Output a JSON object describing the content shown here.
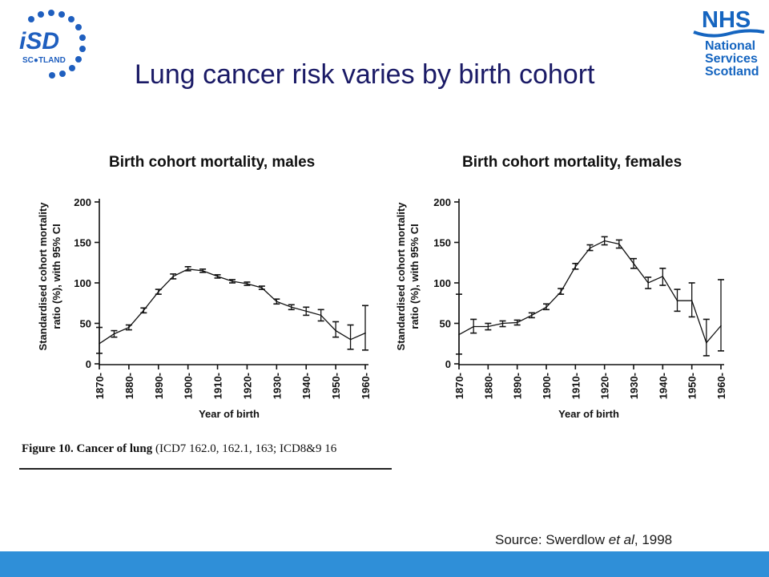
{
  "slide": {
    "title": "Lung cancer risk varies by birth cohort",
    "source_prefix": "Source: Swerdlow ",
    "source_italic": "et al",
    "source_suffix": ", 1998",
    "caption_label": "Figure 10. Cancer of lung",
    "caption_rest": " (ICD7 162.0, 162.1, 163; ICD8&9 16",
    "bar_color": "#2f8fd8"
  },
  "logos": {
    "isd": {
      "letters": "iSD",
      "sub_start": "SC",
      "sub_end": "TLAND",
      "color": "#1f5fbf"
    },
    "nhs": {
      "badge": "NHS",
      "line1": "National",
      "line2": "Services",
      "line3": "Scotland",
      "color": "#1565c0"
    }
  },
  "chart_data": [
    {
      "type": "line",
      "title": "Birth cohort mortality, males",
      "xlabel": "Year of birth",
      "ylabel_line1": "Standardised cohort mortality",
      "ylabel_line2": "ratio (%), with 95% CI",
      "ylim": [
        0,
        200
      ],
      "yticks": [
        0,
        50,
        100,
        150,
        200
      ],
      "xticks": [
        "1870-",
        "1880-",
        "1890-",
        "1900-",
        "1910-",
        "1920-",
        "1930-",
        "1940-",
        "1950-",
        "1960-"
      ],
      "grid": false,
      "series": [
        {
          "x": [
            1870,
            1875,
            1880,
            1885,
            1890,
            1895,
            1900,
            1905,
            1910,
            1915,
            1920,
            1925,
            1930,
            1935,
            1940,
            1945,
            1950,
            1955,
            1960
          ],
          "values": [
            25,
            37,
            45,
            66,
            89,
            108,
            117,
            115,
            108,
            102,
            99,
            94,
            77,
            70,
            65,
            60,
            41,
            30,
            38
          ],
          "ci_low": [
            13,
            33,
            42,
            63,
            86,
            105,
            115,
            113,
            106,
            100,
            97,
            92,
            74,
            67,
            60,
            53,
            33,
            18,
            17
          ],
          "ci_high": [
            45,
            41,
            48,
            69,
            92,
            111,
            120,
            117,
            110,
            104,
            101,
            96,
            80,
            73,
            70,
            67,
            52,
            48,
            72
          ]
        }
      ]
    },
    {
      "type": "line",
      "title": "Birth cohort mortality, females",
      "xlabel": "Year of birth",
      "ylabel_line1": "Standardised cohort mortality",
      "ylabel_line2": "ratio (%), with 95% CI",
      "ylim": [
        0,
        200
      ],
      "yticks": [
        0,
        50,
        100,
        150,
        200
      ],
      "xticks": [
        "1870-",
        "1880-",
        "1890-",
        "1900-",
        "1910-",
        "1920-",
        "1930-",
        "1940-",
        "1950-",
        "1960-"
      ],
      "grid": false,
      "series": [
        {
          "x": [
            1870,
            1875,
            1880,
            1885,
            1890,
            1895,
            1900,
            1905,
            1910,
            1915,
            1920,
            1925,
            1930,
            1935,
            1940,
            1945,
            1950,
            1955,
            1960
          ],
          "values": [
            36,
            46,
            46,
            50,
            51,
            60,
            70,
            89,
            120,
            143,
            152,
            148,
            124,
            100,
            108,
            78,
            78,
            26,
            47
          ],
          "ci_low": [
            12,
            38,
            42,
            46,
            48,
            57,
            67,
            86,
            117,
            140,
            147,
            143,
            118,
            93,
            97,
            65,
            58,
            10,
            16
          ],
          "ci_high": [
            86,
            55,
            50,
            53,
            54,
            63,
            74,
            93,
            124,
            147,
            157,
            153,
            130,
            107,
            118,
            92,
            100,
            55,
            104
          ]
        }
      ]
    }
  ]
}
